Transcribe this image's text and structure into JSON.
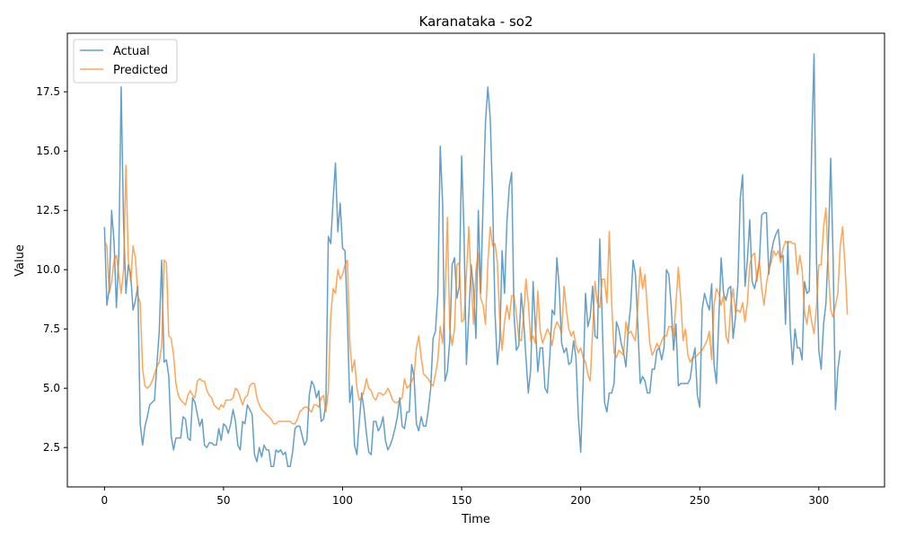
{
  "chart_data": {
    "type": "line",
    "title": "Karanataka - so2",
    "xlabel": "Time",
    "ylabel": "Value",
    "xlim": [
      -15.6,
      327.6
    ],
    "ylim": [
      0.84,
      19.97
    ],
    "xticks": [
      0,
      50,
      100,
      150,
      200,
      250,
      300
    ],
    "yticks": [
      2.5,
      5.0,
      7.5,
      10.0,
      12.5,
      15.0,
      17.5
    ],
    "ytick_labels": [
      "2.5",
      "5.0",
      "7.5",
      "10.0",
      "12.5",
      "15.0",
      "17.5"
    ],
    "grid": false,
    "legend": "upper-left",
    "series": [
      {
        "name": "Actual",
        "color": "#1f77b4",
        "values": [
          11.8,
          8.5,
          9.2,
          12.5,
          11.2,
          8.4,
          10.6,
          17.7,
          12.0,
          9.0,
          10.2,
          9.8,
          8.3,
          8.7,
          9.3,
          3.5,
          2.6,
          3.4,
          3.8,
          4.3,
          4.4,
          4.5,
          6.0,
          7.4,
          10.4,
          6.1,
          6.2,
          5.5,
          3.0,
          2.4,
          2.9,
          2.9,
          2.9,
          3.8,
          3.7,
          2.9,
          2.8,
          4.6,
          4.4,
          3.9,
          3.4,
          3.7,
          2.6,
          2.5,
          2.7,
          2.7,
          2.6,
          2.6,
          3.3,
          2.8,
          3.5,
          3.4,
          3.1,
          3.5,
          4.1,
          3.6,
          2.6,
          2.4,
          3.6,
          3.5,
          4.3,
          4.1,
          3.9,
          2.2,
          1.9,
          2.5,
          2.1,
          2.6,
          2.4,
          2.4,
          1.7,
          1.7,
          2.4,
          2.3,
          2.4,
          2.2,
          2.3,
          1.7,
          1.7,
          2.3,
          3.3,
          3.4,
          3.4,
          3.0,
          2.6,
          2.8,
          4.7,
          5.3,
          5.1,
          4.6,
          4.9,
          3.6,
          3.7,
          4.4,
          11.4,
          11.1,
          12.9,
          14.5,
          11.6,
          12.8,
          10.9,
          10.8,
          8.0,
          4.4,
          5.1,
          2.6,
          2.2,
          3.6,
          4.8,
          4.1,
          3.1,
          2.3,
          2.2,
          3.6,
          3.6,
          3.2,
          3.4,
          3.8,
          2.8,
          2.4,
          2.6,
          2.9,
          3.3,
          3.8,
          4.6,
          3.4,
          3.3,
          4.0,
          4.0,
          6.0,
          5.5,
          3.5,
          3.2,
          3.8,
          3.4,
          3.4,
          4.1,
          5.0,
          7.1,
          7.4,
          9.0,
          15.2,
          12.8,
          5.3,
          5.7,
          7.0,
          10.2,
          10.5,
          8.8,
          9.3,
          14.8,
          11.5,
          6.0,
          8.1,
          10.2,
          9.2,
          7.1,
          12.5,
          9.0,
          12.8,
          16.2,
          17.7,
          16.4,
          13.0,
          8.2,
          6.0,
          7.0,
          10.8,
          9.0,
          12.0,
          13.5,
          14.1,
          8.1,
          6.6,
          6.8,
          9.0,
          7.9,
          6.3,
          4.8,
          5.8,
          9.5,
          7.5,
          5.7,
          6.7,
          6.7,
          5.0,
          4.8,
          6.3,
          8.3,
          8.1,
          10.5,
          9.2,
          6.9,
          6.5,
          6.7,
          6.0,
          6.1,
          7.0,
          6.3,
          3.8,
          2.3,
          5.2,
          9.0,
          7.6,
          8.0,
          9.3,
          7.2,
          7.1,
          11.3,
          8.0,
          4.4,
          4.0,
          4.8,
          4.8,
          5.2,
          7.8,
          7.5,
          6.9,
          6.5,
          5.9,
          7.5,
          8.5,
          10.4,
          9.8,
          7.6,
          5.2,
          5.5,
          5.3,
          4.8,
          4.8,
          5.8,
          5.8,
          6.6,
          6.7,
          6.2,
          6.7,
          10.0,
          9.8,
          8.5,
          6.6,
          7.7,
          5.1,
          5.2,
          5.2,
          5.2,
          5.2,
          5.4,
          6.2,
          6.7,
          4.7,
          4.2,
          8.3,
          9.0,
          8.6,
          8.3,
          9.4,
          6.0,
          5.2,
          7.9,
          10.5,
          9.0,
          8.7,
          9.2,
          9.3,
          7.1,
          8.0,
          9.4,
          13.0,
          14.0,
          9.3,
          10.4,
          12.1,
          9.5,
          9.2,
          9.7,
          10.3,
          12.3,
          12.4,
          12.4,
          9.8,
          10.7,
          11.2,
          11.5,
          11.7,
          10.5,
          10.6,
          7.7,
          11.2,
          7.5,
          6.0,
          7.5,
          6.7,
          6.7,
          6.2,
          9.5,
          9.0,
          9.1,
          15.2,
          19.1,
          10.5,
          6.6,
          5.8,
          7.7,
          8.6,
          11.0,
          14.7,
          10.5,
          4.1,
          5.8,
          6.6
        ]
      },
      {
        "name": "Predicted",
        "color": "#ff7f0e",
        "values": [
          11.2,
          11.0,
          9.0,
          9.5,
          10.4,
          10.6,
          9.8,
          9.0,
          10.0,
          14.4,
          10.4,
          9.5,
          11.0,
          10.5,
          8.9,
          8.6,
          5.8,
          5.1,
          5.0,
          5.1,
          5.3,
          5.6,
          5.9,
          6.1,
          6.8,
          10.4,
          10.3,
          7.2,
          7.1,
          6.4,
          5.2,
          4.7,
          4.5,
          4.4,
          4.3,
          4.7,
          4.9,
          4.7,
          4.6,
          5.3,
          5.4,
          5.3,
          5.3,
          4.9,
          4.7,
          4.6,
          4.3,
          4.2,
          4.1,
          4.3,
          4.2,
          4.5,
          4.5,
          4.5,
          4.6,
          5.0,
          4.9,
          4.6,
          4.3,
          4.6,
          4.7,
          5.1,
          5.2,
          5.2,
          4.6,
          4.3,
          4.1,
          4.0,
          3.9,
          3.8,
          3.7,
          3.5,
          3.5,
          3.6,
          3.6,
          3.6,
          3.6,
          3.6,
          3.6,
          3.5,
          3.5,
          3.7,
          4.0,
          4.1,
          4.2,
          4.2,
          4.1,
          4.0,
          4.3,
          4.3,
          4.2,
          4.6,
          4.7,
          4.0,
          4.9,
          8.0,
          9.2,
          9.0,
          10.0,
          9.6,
          9.8,
          10.2,
          10.4,
          7.0,
          5.7,
          6.2,
          5.0,
          4.5,
          4.6,
          4.9,
          5.4,
          5.0,
          4.9,
          4.6,
          4.5,
          4.8,
          4.8,
          4.7,
          4.8,
          5.0,
          4.8,
          4.5,
          4.4,
          4.4,
          4.5,
          4.6,
          5.4,
          5.0,
          5.1,
          5.3,
          5.5,
          6.7,
          7.2,
          6.3,
          5.6,
          5.5,
          5.4,
          5.2,
          5.1,
          5.6,
          6.2,
          7.6,
          6.9,
          8.7,
          12.2,
          7.5,
          6.8,
          7.5,
          10.2,
          10.3,
          7.8,
          7.9,
          9.8,
          11.8,
          9.5,
          7.7,
          10.0,
          10.7,
          8.8,
          8.5,
          7.7,
          10.3,
          11.8,
          11.0,
          11.1,
          10.3,
          7.9,
          6.6,
          7.8,
          8.5,
          7.9,
          8.9,
          8.9,
          8.1,
          7.1,
          7.0,
          8.0,
          9.6,
          8.6,
          7.0,
          7.2,
          6.9,
          9.1,
          7.4,
          6.9,
          7.2,
          7.5,
          7.3,
          6.8,
          7.5,
          7.8,
          7.6,
          7.3,
          9.3,
          8.3,
          7.5,
          7.2,
          7.4,
          6.8,
          6.5,
          6.7,
          6.3,
          6.1,
          5.6,
          5.3,
          7.4,
          9.5,
          8.6,
          8.4,
          9.6,
          9.6,
          8.6,
          11.6,
          8.6,
          6.5,
          6.3,
          6.6,
          6.5,
          6.4,
          7.8,
          7.3,
          7.4,
          7.2,
          7.0,
          8.5,
          10.1,
          9.2,
          9.8,
          8.3,
          6.9,
          6.4,
          6.6,
          6.9,
          6.7,
          7.0,
          7.2,
          7.2,
          7.6,
          7.6,
          7.2,
          8.6,
          10.1,
          8.8,
          7.0,
          7.5,
          6.4,
          6.1,
          6.3,
          6.3,
          6.4,
          6.5,
          6.6,
          6.8,
          7.0,
          7.4,
          6.2,
          8.5,
          9.2,
          9.0,
          8.5,
          8.9,
          7.2,
          6.9,
          8.5,
          9.2,
          8.2,
          8.3,
          8.2,
          8.6,
          7.8,
          8.6,
          10.2,
          10.6,
          10.7,
          9.5,
          10.4,
          9.2,
          8.5,
          9.4,
          10.0,
          10.3,
          10.8,
          10.6,
          10.8,
          10.3,
          10.9,
          11.2,
          11.1,
          11.2,
          11.1,
          11.1,
          9.8,
          10.6,
          10.0,
          8.2,
          7.7,
          8.5,
          7.8,
          7.3,
          8.4,
          10.2,
          10.2,
          11.8,
          12.6,
          10.0,
          8.3,
          8.0,
          8.5,
          9.0,
          11.0,
          11.8,
          10.2,
          8.1
        ]
      }
    ]
  }
}
